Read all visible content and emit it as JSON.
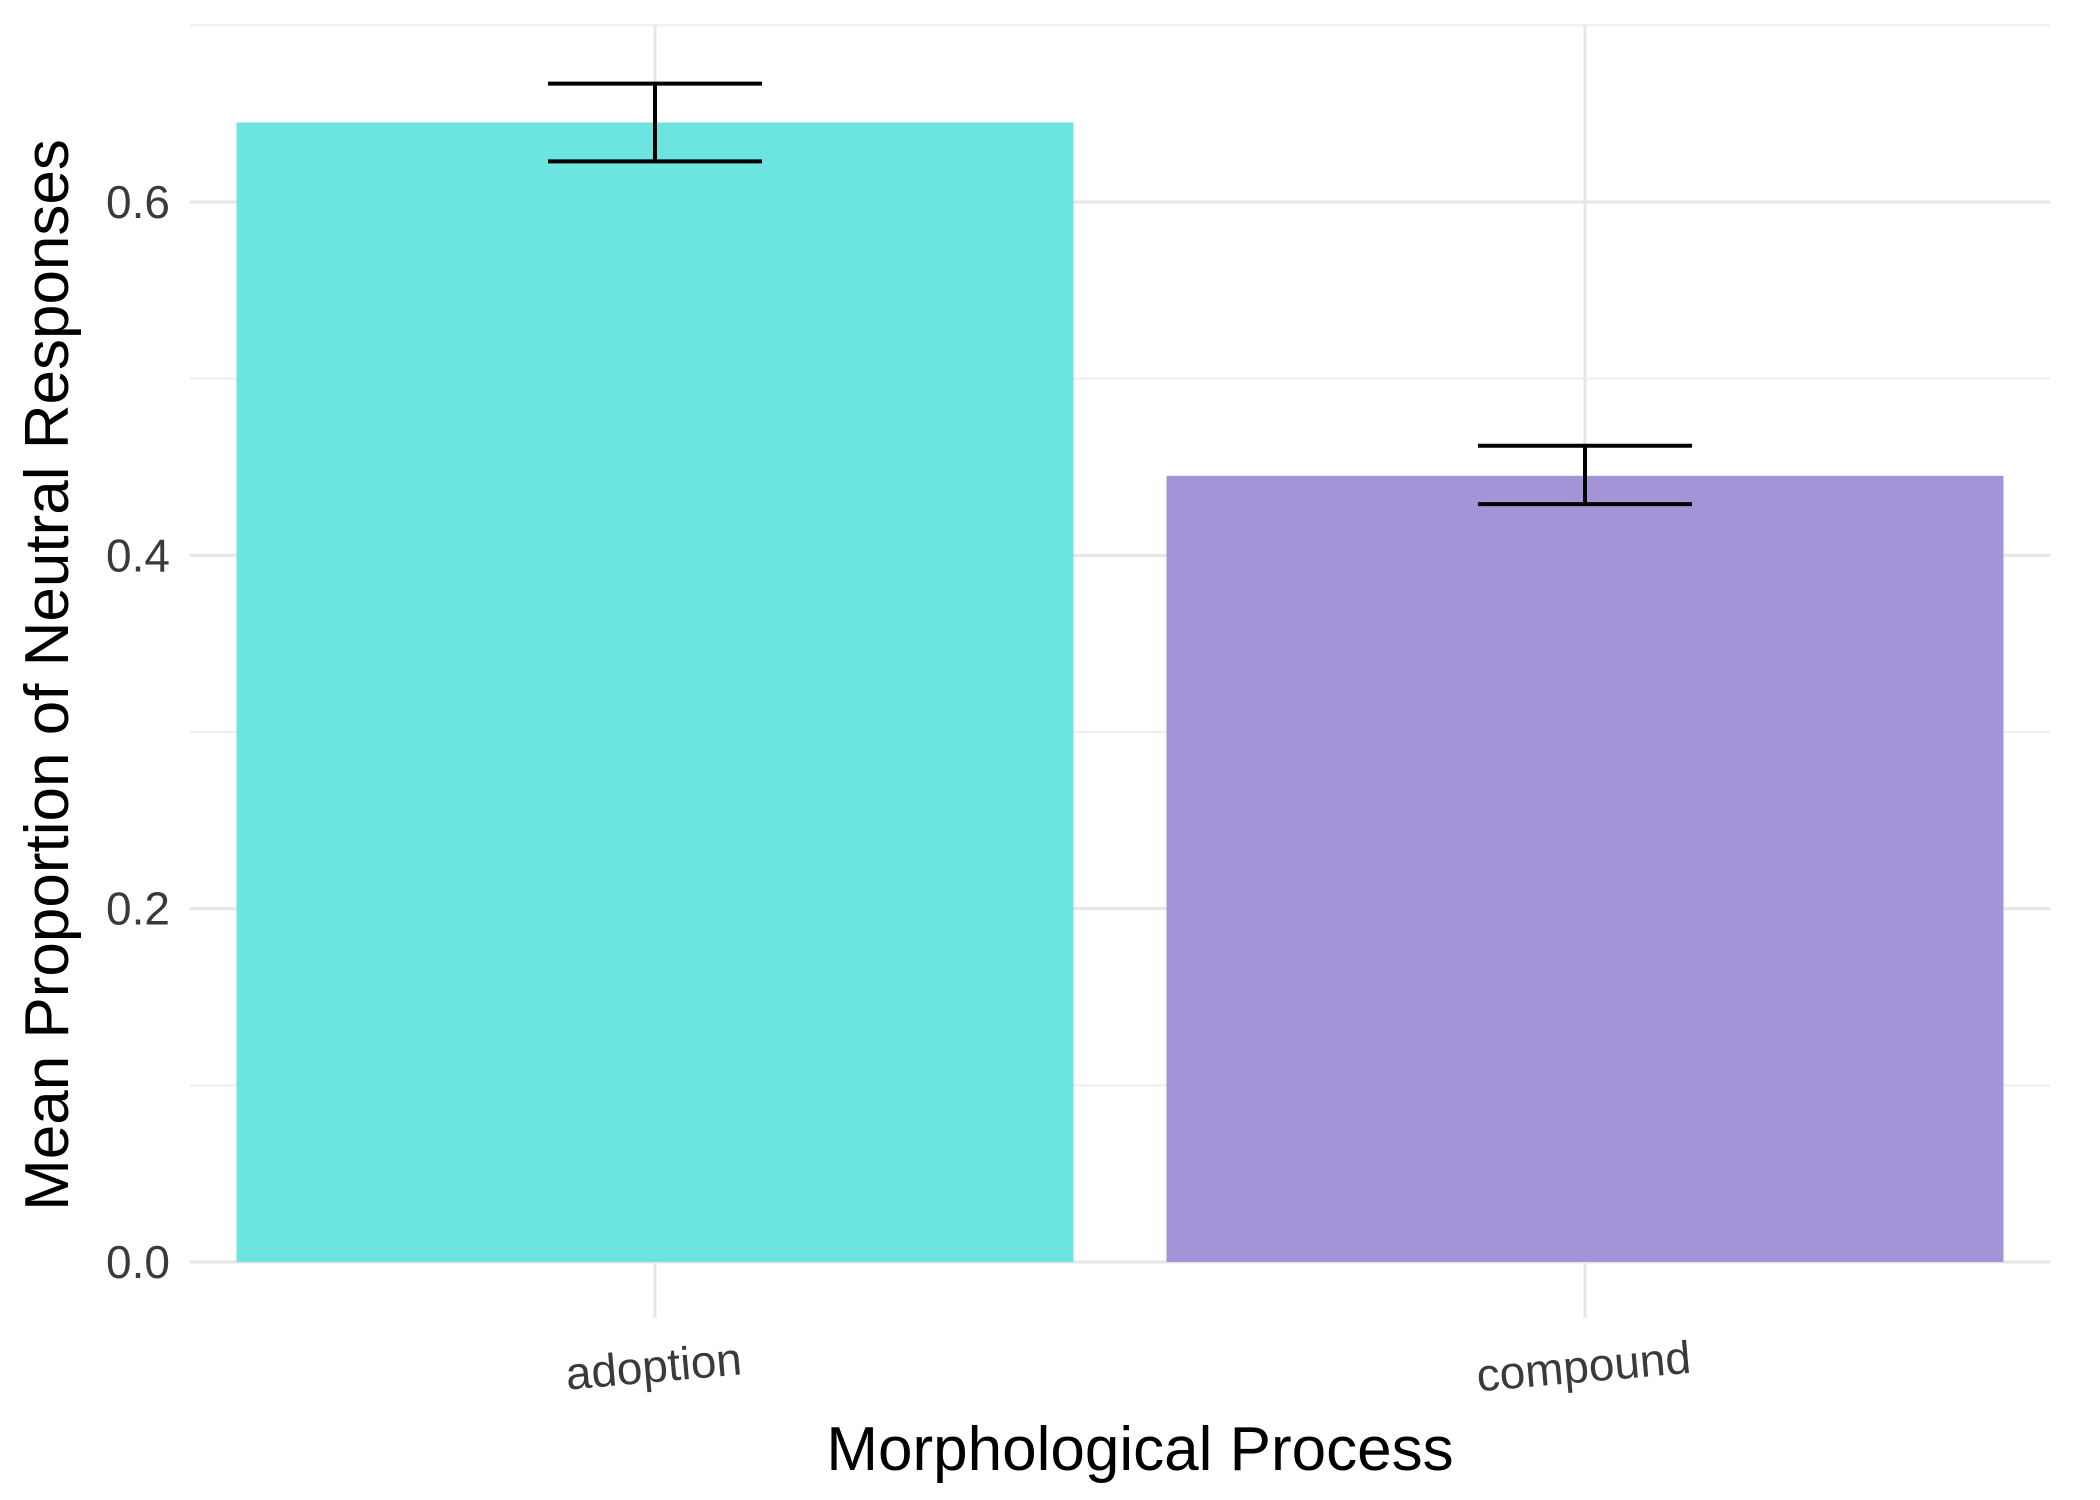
{
  "chart_data": {
    "type": "bar",
    "title": "",
    "xlabel": "Morphological Process",
    "ylabel": "Mean Proportion of Neutral Responses",
    "categories": [
      "adoption",
      "compound"
    ],
    "values": [
      0.645,
      0.445
    ],
    "error_bars": [
      {
        "lower": 0.623,
        "upper": 0.667
      },
      {
        "lower": 0.429,
        "upper": 0.462
      }
    ],
    "colors": [
      "#6ce4df",
      "#a294d6"
    ],
    "ylim": [
      0,
      0.7
    ],
    "y_ticks": [
      "0.0",
      "0.2",
      "0.4",
      "0.6"
    ],
    "y_tick_values": [
      0.0,
      0.2,
      0.4,
      0.6
    ],
    "y_minor_values": [
      0.1,
      0.3,
      0.5,
      0.7
    ],
    "grid": true,
    "legend": "none",
    "x_tick_rotation_deg": 5
  }
}
